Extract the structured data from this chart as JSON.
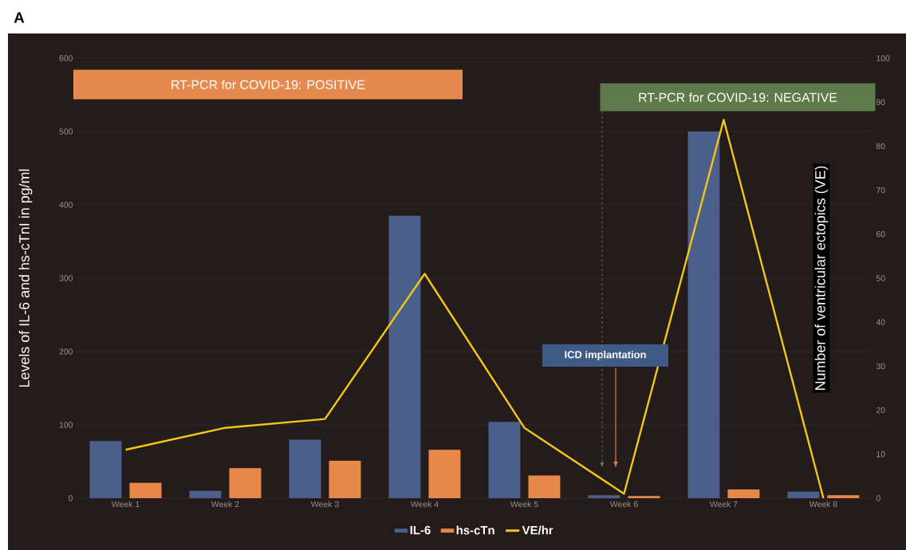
{
  "chart_data": {
    "type": "bar",
    "categories": [
      "Week 1",
      "Week 2",
      "Week 3",
      "Week 4",
      "Week 5",
      "Week 6",
      "Week 7",
      "Week 8"
    ],
    "series": [
      {
        "name": "IL-6",
        "color": "#4a5f8a",
        "values": [
          78,
          10,
          80,
          385,
          104,
          4,
          500,
          9
        ]
      },
      {
        "name": "hs-cTn",
        "color": "#e8894a",
        "values": [
          21,
          41,
          51,
          66,
          31,
          3,
          12,
          4
        ]
      },
      {
        "name": "VE/hr",
        "type": "line",
        "axis": "y2",
        "color": "#f5c518",
        "values": [
          11,
          16,
          18,
          51,
          16,
          1,
          86,
          0
        ]
      }
    ],
    "ylabel": "Levels of IL-6 and hs-cTnI in pg/ml",
    "y2label": "Number of ventricular ectopics (VE)",
    "ylim": [
      0,
      600
    ],
    "yticks": [
      0,
      100,
      200,
      300,
      400,
      500,
      600
    ],
    "y2lim": [
      0,
      100
    ],
    "y2ticks": [
      0,
      10,
      20,
      30,
      40,
      50,
      60,
      70,
      80,
      90,
      100
    ],
    "annotations": [
      "A",
      "RT-PCR for COVID-19: POSITIVE",
      "RT-PCR for COVID-19: NEGATIVE",
      "ICD implantation"
    ],
    "grid": "y",
    "legend": "bottom",
    "marker": "none",
    "line_style": "solid"
  }
}
